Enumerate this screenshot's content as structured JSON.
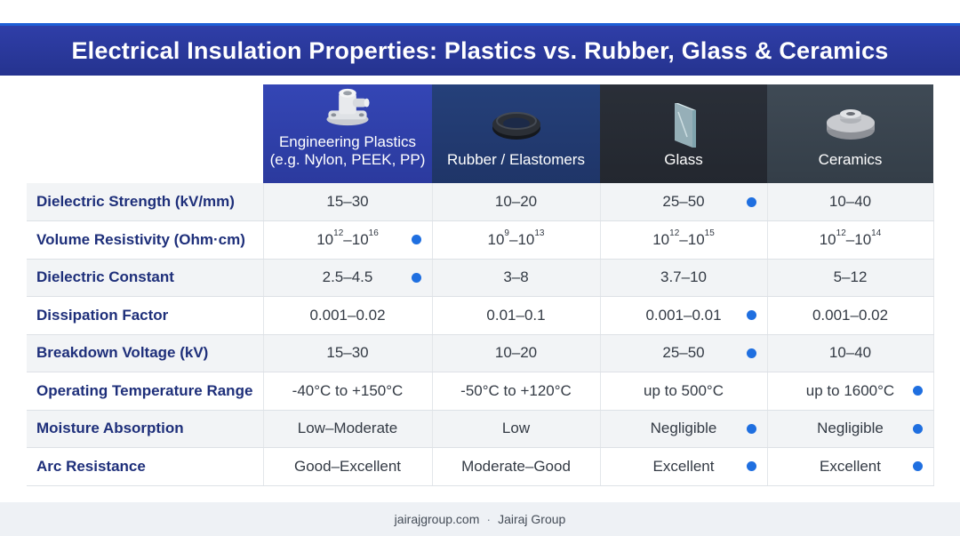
{
  "title": "Electrical Insulation Properties: Plastics vs. Rubber, Glass & Ceramics",
  "columns": [
    {
      "label_line1": "Engineering Plastics",
      "label_line2": "(e.g. Nylon, PEEK, PP)",
      "icon": "plastic-flange-icon"
    },
    {
      "label_line1": "Rubber / Elastomers",
      "label_line2": "",
      "icon": "rubber-ring-icon"
    },
    {
      "label_line1": "Glass",
      "label_line2": "",
      "icon": "glass-pane-icon"
    },
    {
      "label_line1": "Ceramics",
      "label_line2": "",
      "icon": "ceramic-washer-icon"
    }
  ],
  "rows": [
    {
      "property": "Dielectric Strength (kV/mm)",
      "values": [
        "15–30",
        "10–20",
        "25–50",
        "10–40"
      ],
      "highlight": [
        false,
        false,
        true,
        false
      ]
    },
    {
      "property": "Volume Resistivity (Ohm·cm)",
      "values": [
        "10^12–10^16",
        "10^9–10^13",
        "10^12–10^15",
        "10^12–10^14"
      ],
      "highlight": [
        true,
        false,
        false,
        false
      ]
    },
    {
      "property": "Dielectric Constant",
      "values": [
        "2.5–4.5",
        "3–8",
        "3.7–10",
        "5–12"
      ],
      "highlight": [
        true,
        false,
        false,
        false
      ]
    },
    {
      "property": "Dissipation Factor",
      "values": [
        "0.001–0.02",
        "0.01–0.1",
        "0.001–0.01",
        "0.001–0.02"
      ],
      "highlight": [
        false,
        false,
        true,
        false
      ]
    },
    {
      "property": "Breakdown Voltage (kV)",
      "values": [
        "15–30",
        "10–20",
        "25–50",
        "10–40"
      ],
      "highlight": [
        false,
        false,
        true,
        false
      ]
    },
    {
      "property": "Operating Temperature Range",
      "values": [
        "-40°C to +150°C",
        "-50°C to +120°C",
        "up to 500°C",
        "up to 1600°C"
      ],
      "highlight": [
        false,
        false,
        false,
        true
      ]
    },
    {
      "property": "Moisture Absorption",
      "values": [
        "Low–Moderate",
        "Low",
        "Negligible",
        "Negligible"
      ],
      "highlight": [
        false,
        false,
        true,
        true
      ]
    },
    {
      "property": "Arc Resistance",
      "values": [
        "Good–Excellent",
        "Moderate–Good",
        "Excellent",
        "Excellent"
      ],
      "highlight": [
        false,
        false,
        true,
        true
      ]
    }
  ],
  "resistivity_parts": [
    {
      "base1": "10",
      "exp1": "12",
      "base2": "10",
      "exp2": "16"
    },
    {
      "base1": "10",
      "exp1": "9",
      "base2": "10",
      "exp2": "13"
    },
    {
      "base1": "10",
      "exp1": "12",
      "base2": "10",
      "exp2": "15"
    },
    {
      "base1": "10",
      "exp1": "12",
      "base2": "10",
      "exp2": "14"
    }
  ],
  "footer": {
    "site": "jairajgroup.com",
    "separator": "·",
    "brand": "Jairaj Group"
  },
  "colors": {
    "title_bg": "#2b3a9e",
    "accent_dot": "#1f6fe0",
    "property_text": "#1e2f7a"
  }
}
